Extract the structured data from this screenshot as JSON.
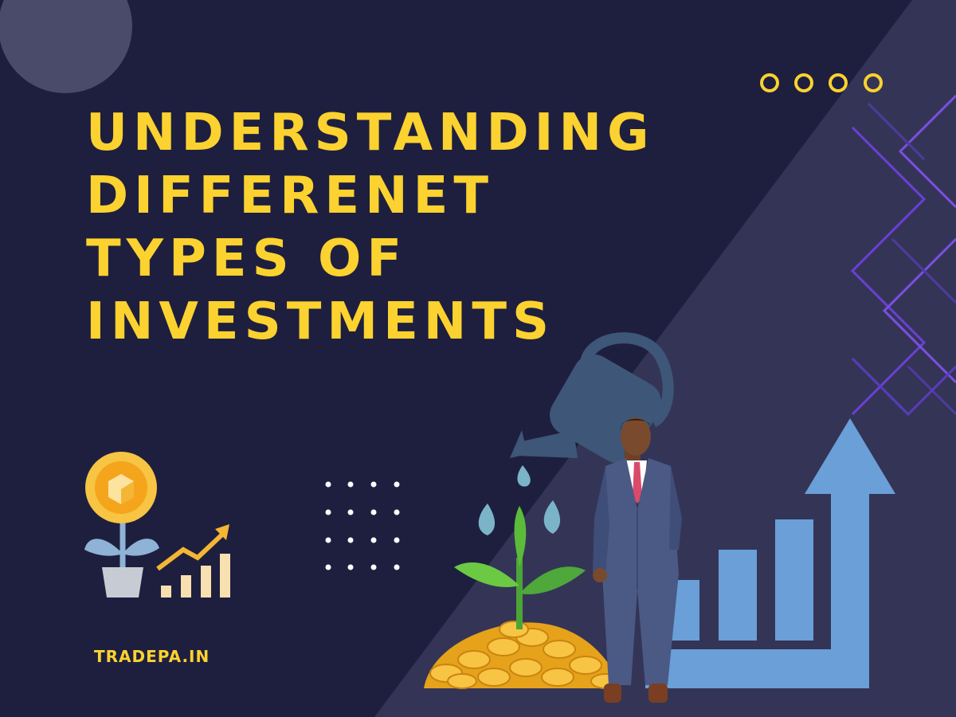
{
  "title": {
    "lines": [
      "UNDERSTANDING",
      "DIFFERENET",
      "TYPES OF",
      "INVESTMENTS"
    ]
  },
  "brand": "TRADEPA.IN",
  "colors": {
    "background": "#1e1f3f",
    "diagonal_panel": "#343556",
    "accent_yellow": "#fbd22f",
    "accent_purple": "#6a3fd6",
    "arrow_blue": "#6a9fd8",
    "coin_gold": "#f2b01e",
    "plant_green": "#5cbb3a"
  },
  "icons": [
    "circle-decor-icon",
    "yellow-rings-icon",
    "purple-zigzag-pattern",
    "coin-plant-icon",
    "growth-chart-icon",
    "dot-grid-icon",
    "watering-can-icon",
    "sprout-icon",
    "coin-pile-icon",
    "businessman-figure",
    "rising-bars-arrow-icon"
  ]
}
